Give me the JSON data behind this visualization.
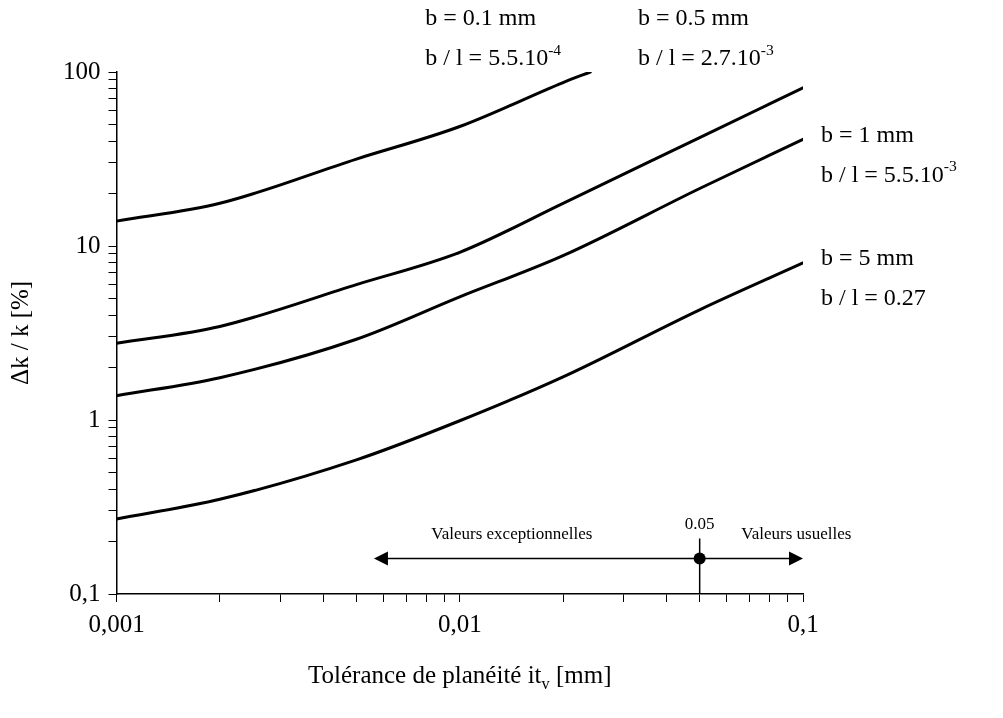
{
  "chart_data": {
    "type": "line",
    "xlabel": "Tolérance de planéité it$_{v}$ [mm]",
    "ylabel": "Δk / k [%]",
    "log": "xy",
    "grid": false,
    "legend": false,
    "marker": "none",
    "line_style": "solid",
    "xlim": [
      0.001,
      0.1
    ],
    "ylim": [
      0.1,
      100
    ],
    "xticks": [
      {
        "value": 0.001,
        "label": "0,001"
      },
      {
        "value": 0.002,
        "label": null
      },
      {
        "value": 0.003,
        "label": null
      },
      {
        "value": 0.004,
        "label": null
      },
      {
        "value": 0.005,
        "label": null
      },
      {
        "value": 0.006,
        "label": null
      },
      {
        "value": 0.007,
        "label": null
      },
      {
        "value": 0.008,
        "label": null
      },
      {
        "value": 0.009,
        "label": null
      },
      {
        "value": 0.01,
        "label": "0,01"
      },
      {
        "value": 0.02,
        "label": null
      },
      {
        "value": 0.03,
        "label": null
      },
      {
        "value": 0.04,
        "label": null
      },
      {
        "value": 0.05,
        "label": null
      },
      {
        "value": 0.06,
        "label": null
      },
      {
        "value": 0.07,
        "label": null
      },
      {
        "value": 0.08,
        "label": null
      },
      {
        "value": 0.09,
        "label": null
      },
      {
        "value": 0.1,
        "label": "0,1"
      }
    ],
    "yticks": [
      {
        "value": 0.1,
        "label": "0,1"
      },
      {
        "value": 0.2,
        "label": null
      },
      {
        "value": 0.3,
        "label": null
      },
      {
        "value": 0.4,
        "label": null
      },
      {
        "value": 0.5,
        "label": null
      },
      {
        "value": 0.6,
        "label": null
      },
      {
        "value": 0.7,
        "label": null
      },
      {
        "value": 0.8,
        "label": null
      },
      {
        "value": 0.9,
        "label": null
      },
      1,
      {
        "value": 2,
        "label": null
      },
      {
        "value": 3,
        "label": null
      },
      {
        "value": 4,
        "label": null
      },
      {
        "value": 5,
        "label": null
      },
      {
        "value": 6,
        "label": null
      },
      {
        "value": 7,
        "label": null
      },
      {
        "value": 8,
        "label": null
      },
      {
        "value": 9,
        "label": null
      },
      10,
      {
        "value": 20,
        "label": null
      },
      {
        "value": 30,
        "label": null
      },
      {
        "value": 40,
        "label": null
      },
      {
        "value": 50,
        "label": null
      },
      {
        "value": 60,
        "label": null
      },
      {
        "value": 70,
        "label": null
      },
      {
        "value": 80,
        "label": null
      },
      {
        "value": 90,
        "label": null
      },
      100
    ],
    "x": [
      0.001,
      0.002,
      0.005,
      0.01,
      0.02,
      0.05,
      0.1
    ],
    "series": [
      {
        "name": "b = 0.1 mm\nb / l = 5.5.10$^{-4}$",
        "color": "#000000",
        "x": [
          0.001,
          0.002,
          0.005,
          0.01,
          0.02,
          0.024
        ],
        "values": [
          13.9,
          17.6,
          31.6,
          48.6,
          87,
          100
        ]
      },
      {
        "name": "b = 0.5 mm\nb / l = 2.7.10$^{-3}$",
        "color": "#000000",
        "values": [
          2.76,
          3.45,
          6.0,
          9.2,
          17.6,
          42,
          81
        ]
      },
      {
        "name": "b = 1 mm\nb / l = 5.5.10$^{-3}$",
        "color": "#000000",
        "values": [
          1.38,
          1.75,
          2.91,
          5.1,
          8.8,
          21.4,
          41
        ]
      },
      {
        "name": "b = 5 mm\nb / l = 0.27",
        "color": "#000000",
        "values": [
          0.27,
          0.35,
          0.59,
          0.99,
          1.77,
          4.3,
          8.0
        ]
      }
    ],
    "annotations": [
      {
        "text": "0.05",
        "x": 0.05,
        "y": 0.16
      },
      "Valeurs exceptionnelles",
      "Valeurs usuelles"
    ]
  }
}
